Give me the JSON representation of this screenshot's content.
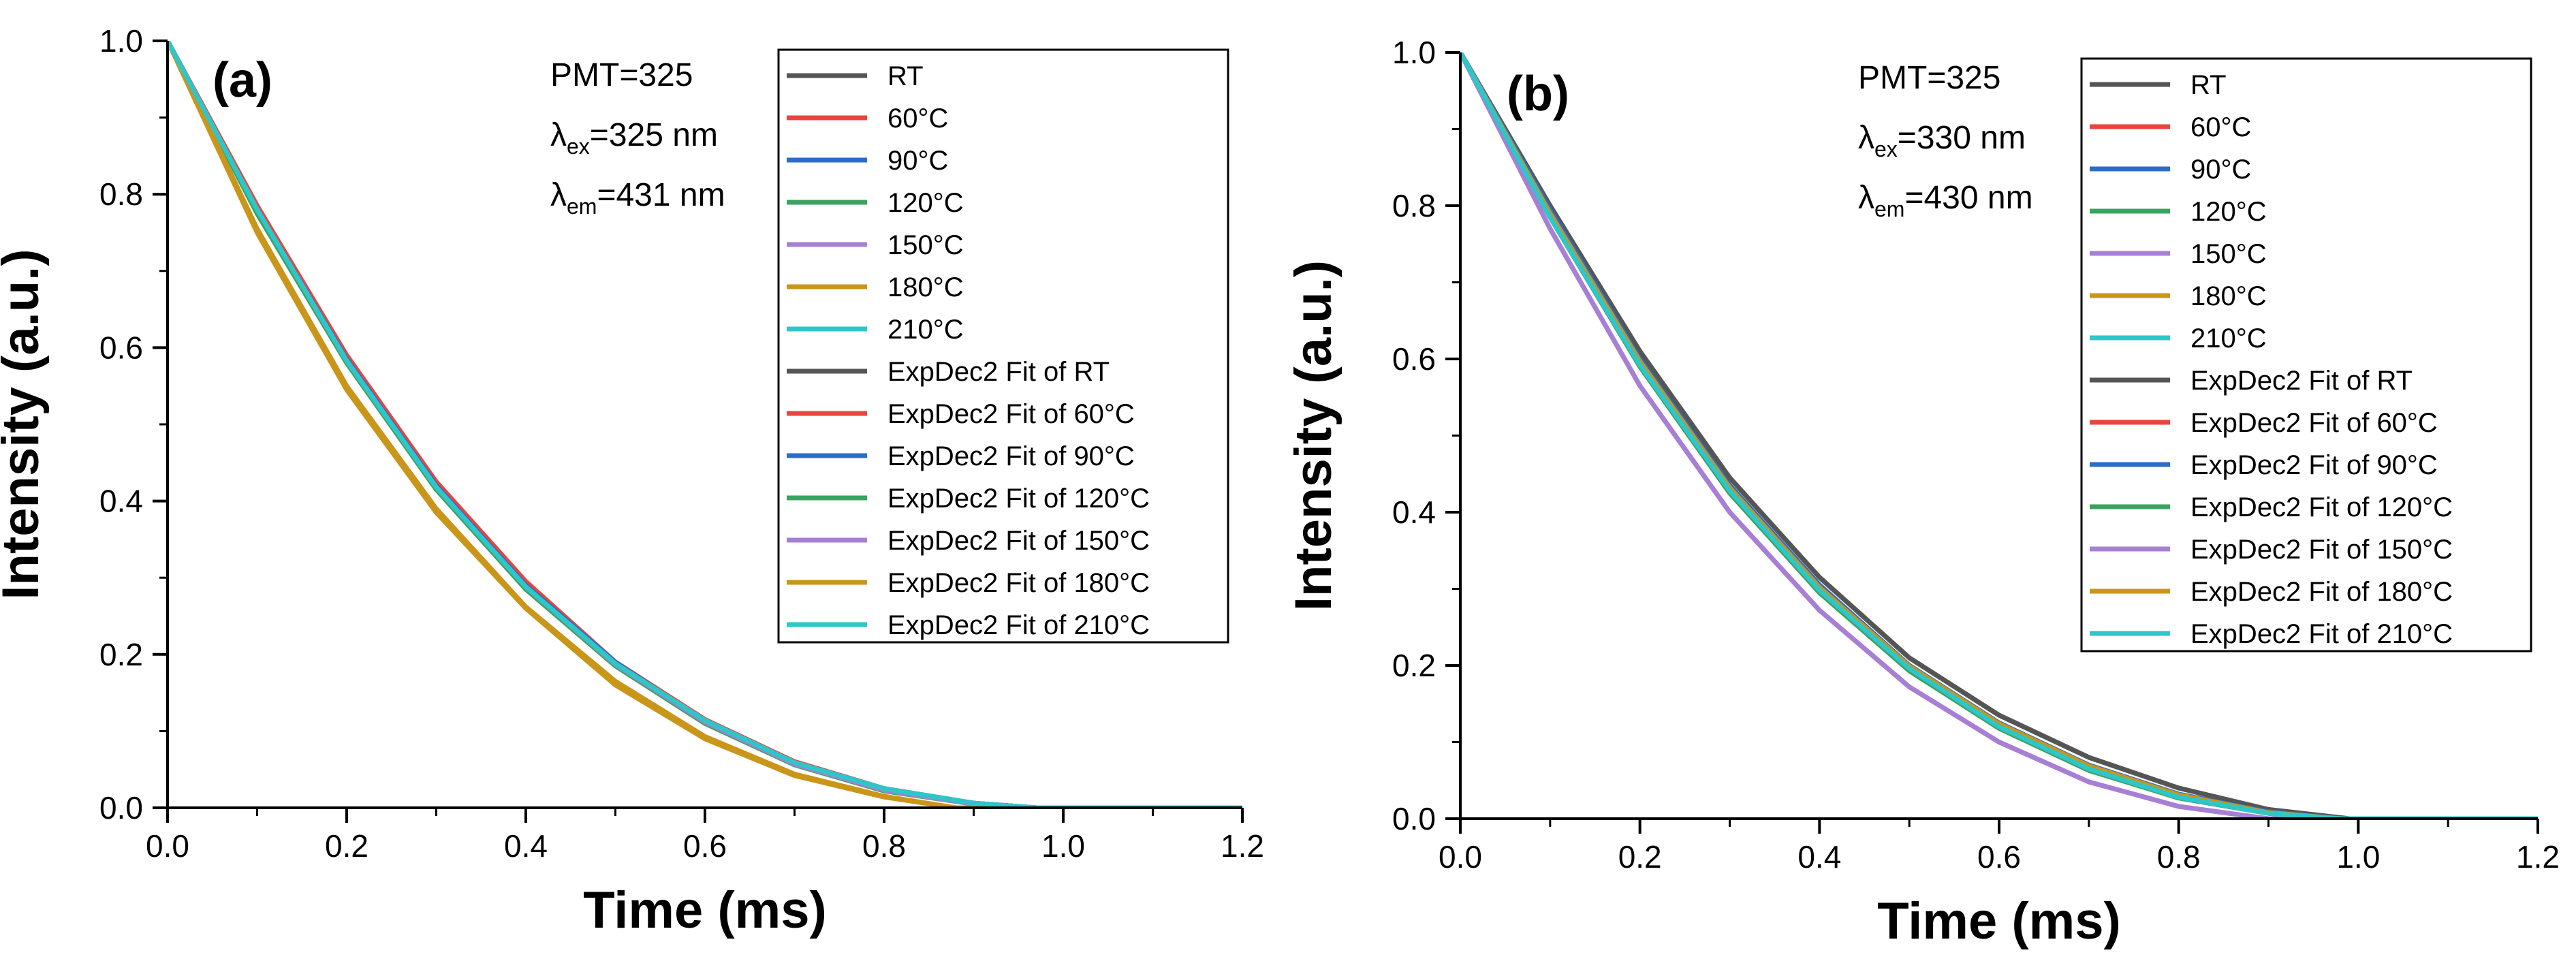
{
  "chart_data": [
    {
      "type": "line",
      "panel_label": "(a)",
      "xlabel": "Time (ms)",
      "ylabel": "Intensity (a.u.)",
      "xlim": [
        0.0,
        1.2
      ],
      "ylim": [
        0.0,
        1.0
      ],
      "xticks": [
        "0.0",
        "0.2",
        "0.4",
        "0.6",
        "0.8",
        "1.0",
        "1.2"
      ],
      "yticks": [
        "0.0",
        "0.2",
        "0.4",
        "0.6",
        "0.8",
        "1.0"
      ],
      "annotations": [
        {
          "main": "PMT=325",
          "sub": "",
          "tail": ""
        },
        {
          "main": "λ",
          "sub": "ex",
          "tail": "=325 nm"
        },
        {
          "main": "λ",
          "sub": "em",
          "tail": "=431 nm"
        }
      ],
      "legend": [
        "RT",
        "60°C",
        "90°C",
        "120°C",
        "150°C",
        "180°C",
        "210°C",
        "ExpDec2 Fit of RT",
        "ExpDec2 Fit of 60°C",
        "ExpDec2 Fit of 90°C",
        "ExpDec2 Fit of 120°C",
        "ExpDec2 Fit of 150°C",
        "ExpDec2 Fit of 180°C",
        "ExpDec2 Fit of 210°C"
      ],
      "colors": [
        "#555555",
        "#e8453c",
        "#2a6dc9",
        "#3aa35f",
        "#a77fd4",
        "#c9961a",
        "#2ec6c9",
        "#555555",
        "#e8453c",
        "#2a6dc9",
        "#3aa35f",
        "#a77fd4",
        "#c9961a",
        "#2ec6c9"
      ],
      "series": [
        {
          "name": "RT",
          "x": [
            0.0,
            0.1,
            0.2,
            0.3,
            0.4,
            0.5,
            0.6,
            0.7,
            0.8,
            0.9,
            0.97,
            1.2
          ],
          "values": [
            1.0,
            0.78,
            0.585,
            0.42,
            0.29,
            0.19,
            0.115,
            0.06,
            0.025,
            0.006,
            0.0,
            0.0
          ]
        },
        {
          "name": "60°C",
          "x": [
            0.0,
            0.1,
            0.2,
            0.3,
            0.4,
            0.5,
            0.6,
            0.7,
            0.8,
            0.9,
            0.97,
            1.2
          ],
          "values": [
            1.0,
            0.785,
            0.59,
            0.425,
            0.295,
            0.19,
            0.115,
            0.06,
            0.025,
            0.006,
            0.0,
            0.0
          ]
        },
        {
          "name": "90°C",
          "x": [
            0.0,
            0.1,
            0.2,
            0.3,
            0.4,
            0.5,
            0.6,
            0.7,
            0.8,
            0.9,
            0.97,
            1.2
          ],
          "values": [
            1.0,
            0.78,
            0.585,
            0.42,
            0.29,
            0.19,
            0.112,
            0.058,
            0.024,
            0.006,
            0.0,
            0.0
          ]
        },
        {
          "name": "120°C",
          "x": [
            0.0,
            0.1,
            0.2,
            0.3,
            0.4,
            0.5,
            0.6,
            0.7,
            0.8,
            0.9,
            0.97,
            1.2
          ],
          "values": [
            1.0,
            0.775,
            0.58,
            0.415,
            0.285,
            0.185,
            0.11,
            0.056,
            0.022,
            0.005,
            0.0,
            0.0
          ]
        },
        {
          "name": "150°C",
          "x": [
            0.0,
            0.1,
            0.2,
            0.3,
            0.4,
            0.5,
            0.6,
            0.7,
            0.8,
            0.9,
            0.97,
            1.2
          ],
          "values": [
            1.0,
            0.78,
            0.583,
            0.418,
            0.288,
            0.187,
            0.112,
            0.057,
            0.023,
            0.005,
            0.0,
            0.0
          ]
        },
        {
          "name": "180°C",
          "x": [
            0.0,
            0.1,
            0.2,
            0.3,
            0.4,
            0.5,
            0.6,
            0.7,
            0.8,
            0.88,
            1.2
          ],
          "values": [
            1.0,
            0.75,
            0.545,
            0.385,
            0.26,
            0.16,
            0.09,
            0.042,
            0.014,
            0.0,
            0.0
          ]
        },
        {
          "name": "210°C",
          "x": [
            0.0,
            0.1,
            0.2,
            0.3,
            0.4,
            0.5,
            0.6,
            0.7,
            0.8,
            0.9,
            0.97,
            1.2
          ],
          "values": [
            1.0,
            0.78,
            0.583,
            0.418,
            0.288,
            0.188,
            0.114,
            0.059,
            0.025,
            0.006,
            0.0,
            0.0
          ]
        },
        {
          "name": "ExpDec2 Fit of RT",
          "x": [
            0.0,
            0.1,
            0.2,
            0.3,
            0.4,
            0.5,
            0.6,
            0.7,
            0.8,
            0.9,
            0.97,
            1.2
          ],
          "values": [
            1.0,
            0.78,
            0.585,
            0.42,
            0.29,
            0.19,
            0.115,
            0.06,
            0.025,
            0.006,
            0.0,
            0.0
          ]
        },
        {
          "name": "ExpDec2 Fit of 60°C",
          "x": [
            0.0,
            0.1,
            0.2,
            0.3,
            0.4,
            0.5,
            0.6,
            0.7,
            0.8,
            0.9,
            0.97,
            1.2
          ],
          "values": [
            1.0,
            0.785,
            0.59,
            0.425,
            0.295,
            0.19,
            0.115,
            0.06,
            0.025,
            0.006,
            0.0,
            0.0
          ]
        },
        {
          "name": "ExpDec2 Fit of 90°C",
          "x": [
            0.0,
            0.1,
            0.2,
            0.3,
            0.4,
            0.5,
            0.6,
            0.7,
            0.8,
            0.9,
            0.97,
            1.2
          ],
          "values": [
            1.0,
            0.78,
            0.585,
            0.42,
            0.29,
            0.19,
            0.112,
            0.058,
            0.024,
            0.006,
            0.0,
            0.0
          ]
        },
        {
          "name": "ExpDec2 Fit of 120°C",
          "x": [
            0.0,
            0.1,
            0.2,
            0.3,
            0.4,
            0.5,
            0.6,
            0.7,
            0.8,
            0.9,
            0.97,
            1.2
          ],
          "values": [
            1.0,
            0.775,
            0.58,
            0.415,
            0.285,
            0.185,
            0.11,
            0.056,
            0.022,
            0.005,
            0.0,
            0.0
          ]
        },
        {
          "name": "ExpDec2 Fit of 150°C",
          "x": [
            0.0,
            0.1,
            0.2,
            0.3,
            0.4,
            0.5,
            0.6,
            0.7,
            0.8,
            0.9,
            0.97,
            1.2
          ],
          "values": [
            1.0,
            0.78,
            0.583,
            0.418,
            0.288,
            0.187,
            0.112,
            0.057,
            0.023,
            0.005,
            0.0,
            0.0
          ]
        },
        {
          "name": "ExpDec2 Fit of 180°C",
          "x": [
            0.0,
            0.1,
            0.2,
            0.3,
            0.4,
            0.5,
            0.6,
            0.7,
            0.8,
            0.88,
            1.2
          ],
          "values": [
            1.0,
            0.755,
            0.55,
            0.39,
            0.262,
            0.165,
            0.093,
            0.044,
            0.015,
            0.0,
            0.0
          ]
        },
        {
          "name": "ExpDec2 Fit of 210°C",
          "x": [
            0.0,
            0.1,
            0.2,
            0.3,
            0.4,
            0.5,
            0.6,
            0.7,
            0.8,
            0.9,
            0.97,
            1.2
          ],
          "values": [
            1.0,
            0.78,
            0.583,
            0.418,
            0.288,
            0.188,
            0.114,
            0.059,
            0.025,
            0.006,
            0.0,
            0.0
          ]
        }
      ]
    },
    {
      "type": "line",
      "panel_label": "(b)",
      "xlabel": "Time (ms)",
      "ylabel": "Intensity (a.u.)",
      "xlim": [
        0.0,
        1.2
      ],
      "ylim": [
        0.0,
        1.0
      ],
      "xticks": [
        "0.0",
        "0.2",
        "0.4",
        "0.6",
        "0.8",
        "1.0",
        "1.2"
      ],
      "yticks": [
        "0.0",
        "0.2",
        "0.4",
        "0.6",
        "0.8",
        "1.0"
      ],
      "annotations": [
        {
          "main": "PMT=325",
          "sub": "",
          "tail": ""
        },
        {
          "main": "λ",
          "sub": "ex",
          "tail": "=330 nm"
        },
        {
          "main": "λ",
          "sub": "em",
          "tail": "=430 nm"
        }
      ],
      "legend": [
        "RT",
        "60°C",
        "90°C",
        "120°C",
        "150°C",
        "180°C",
        "210°C",
        "ExpDec2 Fit of RT",
        "ExpDec2 Fit of 60°C",
        "ExpDec2 Fit of 90°C",
        "ExpDec2 Fit of 120°C",
        "ExpDec2 Fit of 150°C",
        "ExpDec2 Fit of 180°C",
        "ExpDec2 Fit of 210°C"
      ],
      "colors": [
        "#555555",
        "#e8453c",
        "#2a6dc9",
        "#3aa35f",
        "#a77fd4",
        "#c9961a",
        "#2ec6c9",
        "#555555",
        "#e8453c",
        "#2a6dc9",
        "#3aa35f",
        "#a77fd4",
        "#c9961a",
        "#2ec6c9"
      ],
      "series": [
        {
          "name": "RT",
          "x": [
            0.0,
            0.1,
            0.2,
            0.3,
            0.4,
            0.5,
            0.6,
            0.7,
            0.8,
            0.9,
            0.99,
            1.2
          ],
          "values": [
            1.0,
            0.8,
            0.61,
            0.445,
            0.315,
            0.21,
            0.135,
            0.08,
            0.04,
            0.012,
            0.0,
            0.0
          ]
        },
        {
          "name": "60°C",
          "x": [
            0.0,
            0.1,
            0.2,
            0.3,
            0.4,
            0.5,
            0.6,
            0.7,
            0.8,
            0.9,
            0.98,
            1.2
          ],
          "values": [
            1.0,
            0.79,
            0.595,
            0.43,
            0.3,
            0.198,
            0.123,
            0.068,
            0.03,
            0.008,
            0.0,
            0.0
          ]
        },
        {
          "name": "90°C",
          "x": [
            0.0,
            0.1,
            0.2,
            0.3,
            0.4,
            0.5,
            0.6,
            0.7,
            0.8,
            0.9,
            0.98,
            1.2
          ],
          "values": [
            1.0,
            0.795,
            0.6,
            0.435,
            0.305,
            0.2,
            0.125,
            0.07,
            0.032,
            0.009,
            0.0,
            0.0
          ]
        },
        {
          "name": "120°C",
          "x": [
            0.0,
            0.1,
            0.2,
            0.3,
            0.4,
            0.5,
            0.6,
            0.7,
            0.8,
            0.9,
            0.97,
            1.2
          ],
          "values": [
            1.0,
            0.785,
            0.59,
            0.425,
            0.295,
            0.193,
            0.118,
            0.063,
            0.027,
            0.007,
            0.0,
            0.0
          ]
        },
        {
          "name": "150°C",
          "x": [
            0.0,
            0.1,
            0.2,
            0.3,
            0.4,
            0.5,
            0.6,
            0.7,
            0.8,
            0.9,
            1.2
          ],
          "values": [
            1.0,
            0.77,
            0.565,
            0.4,
            0.272,
            0.172,
            0.1,
            0.048,
            0.016,
            0.0,
            0.0
          ]
        },
        {
          "name": "180°C",
          "x": [
            0.0,
            0.1,
            0.2,
            0.3,
            0.4,
            0.5,
            0.6,
            0.7,
            0.8,
            0.9,
            0.98,
            1.2
          ],
          "values": [
            1.0,
            0.79,
            0.597,
            0.432,
            0.302,
            0.199,
            0.124,
            0.069,
            0.031,
            0.008,
            0.0,
            0.0
          ]
        },
        {
          "name": "210°C",
          "x": [
            0.0,
            0.1,
            0.2,
            0.3,
            0.4,
            0.5,
            0.6,
            0.7,
            0.8,
            0.9,
            0.98,
            1.2
          ],
          "values": [
            1.0,
            0.785,
            0.592,
            0.428,
            0.298,
            0.196,
            0.12,
            0.065,
            0.028,
            0.007,
            0.0,
            0.0
          ]
        },
        {
          "name": "ExpDec2 Fit of RT",
          "x": [
            0.0,
            0.1,
            0.2,
            0.3,
            0.4,
            0.5,
            0.6,
            0.7,
            0.8,
            0.9,
            0.99,
            1.2
          ],
          "values": [
            1.0,
            0.8,
            0.61,
            0.445,
            0.315,
            0.21,
            0.135,
            0.08,
            0.04,
            0.012,
            0.0,
            0.0
          ]
        },
        {
          "name": "ExpDec2 Fit of 60°C",
          "x": [
            0.0,
            0.1,
            0.2,
            0.3,
            0.4,
            0.5,
            0.6,
            0.7,
            0.8,
            0.9,
            0.98,
            1.2
          ],
          "values": [
            1.0,
            0.79,
            0.595,
            0.43,
            0.3,
            0.198,
            0.123,
            0.068,
            0.03,
            0.008,
            0.0,
            0.0
          ]
        },
        {
          "name": "ExpDec2 Fit of 90°C",
          "x": [
            0.0,
            0.1,
            0.2,
            0.3,
            0.4,
            0.5,
            0.6,
            0.7,
            0.8,
            0.9,
            0.98,
            1.2
          ],
          "values": [
            1.0,
            0.795,
            0.6,
            0.435,
            0.305,
            0.2,
            0.125,
            0.07,
            0.032,
            0.009,
            0.0,
            0.0
          ]
        },
        {
          "name": "ExpDec2 Fit of 120°C",
          "x": [
            0.0,
            0.1,
            0.2,
            0.3,
            0.4,
            0.5,
            0.6,
            0.7,
            0.8,
            0.9,
            0.97,
            1.2
          ],
          "values": [
            1.0,
            0.785,
            0.59,
            0.425,
            0.295,
            0.193,
            0.118,
            0.063,
            0.027,
            0.007,
            0.0,
            0.0
          ]
        },
        {
          "name": "ExpDec2 Fit of 150°C",
          "x": [
            0.0,
            0.1,
            0.2,
            0.3,
            0.4,
            0.5,
            0.6,
            0.7,
            0.8,
            0.9,
            1.2
          ],
          "values": [
            1.0,
            0.77,
            0.565,
            0.4,
            0.272,
            0.172,
            0.1,
            0.048,
            0.016,
            0.0,
            0.0
          ]
        },
        {
          "name": "ExpDec2 Fit of 180°C",
          "x": [
            0.0,
            0.1,
            0.2,
            0.3,
            0.4,
            0.5,
            0.6,
            0.7,
            0.8,
            0.9,
            0.98,
            1.2
          ],
          "values": [
            1.0,
            0.79,
            0.597,
            0.432,
            0.302,
            0.199,
            0.124,
            0.069,
            0.031,
            0.008,
            0.0,
            0.0
          ]
        },
        {
          "name": "ExpDec2 Fit of 210°C",
          "x": [
            0.0,
            0.1,
            0.2,
            0.3,
            0.4,
            0.5,
            0.6,
            0.7,
            0.8,
            0.9,
            0.98,
            1.2
          ],
          "values": [
            1.0,
            0.785,
            0.592,
            0.428,
            0.298,
            0.196,
            0.12,
            0.065,
            0.028,
            0.007,
            0.0,
            0.0
          ]
        }
      ]
    }
  ]
}
